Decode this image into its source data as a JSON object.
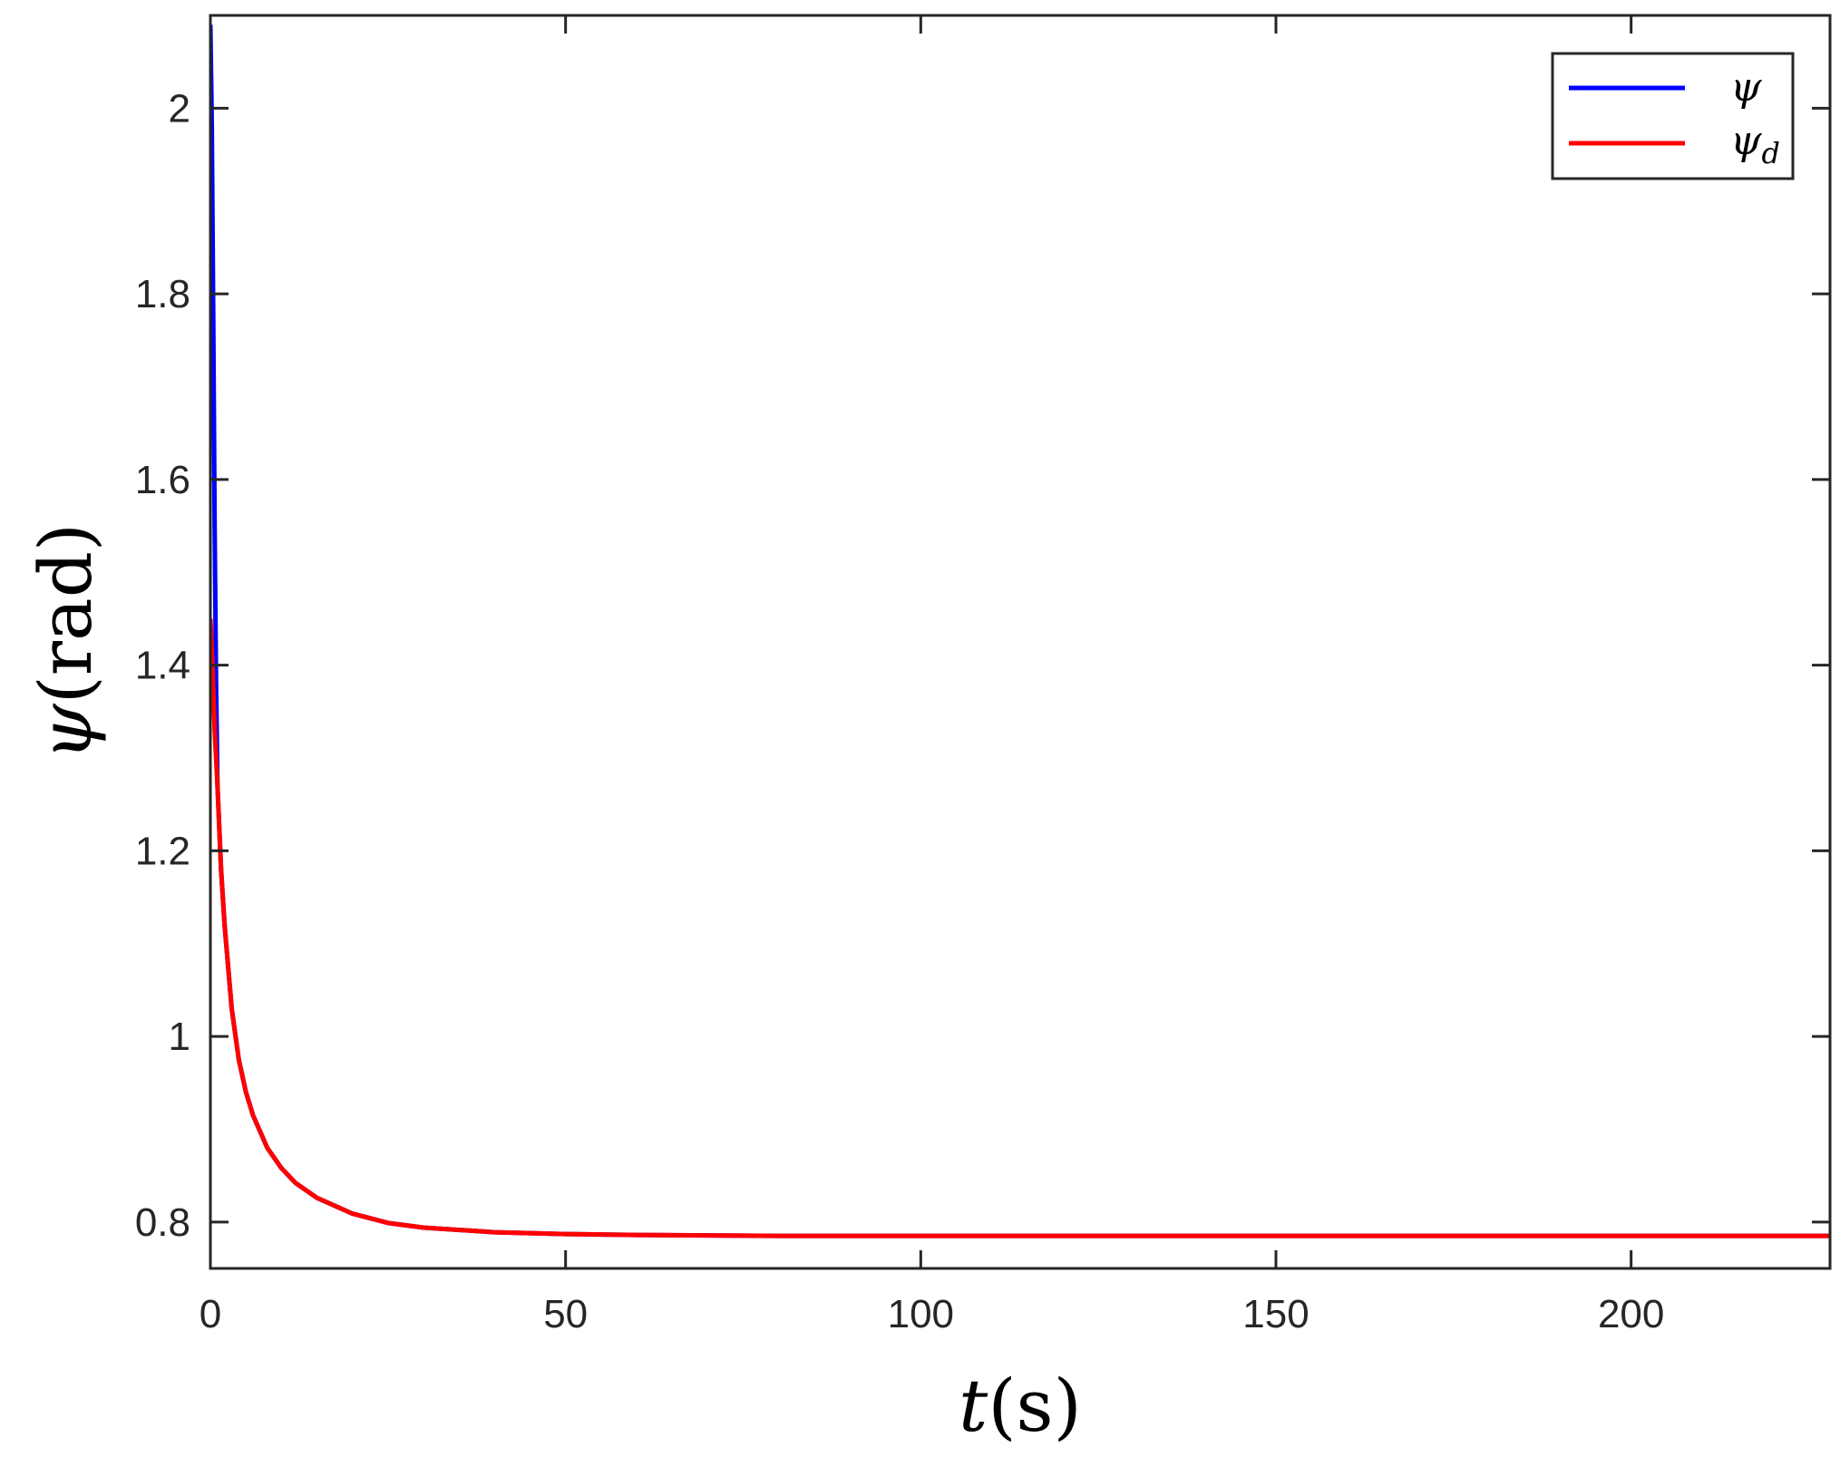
{
  "chart_data": {
    "type": "line",
    "title": "",
    "xlabel": {
      "var": "t",
      "unit": "(s)"
    },
    "ylabel": {
      "var": "ψ",
      "unit": "(rad)"
    },
    "xlim": [
      0,
      228
    ],
    "ylim": [
      0.75,
      2.1
    ],
    "xticks": [
      0,
      50,
      100,
      150,
      200
    ],
    "xtick_labels": [
      "0",
      "50",
      "100",
      "150",
      "200"
    ],
    "yticks": [
      0.8,
      1.0,
      1.2,
      1.4,
      1.6,
      1.8,
      2.0
    ],
    "ytick_labels": [
      "0.8",
      "1",
      "1.2",
      "1.4",
      "1.6",
      "1.8",
      "2"
    ],
    "grid": false,
    "legend_position": "top-right",
    "series": [
      {
        "name": "ψ",
        "color": "#0000ff",
        "x": [
          0,
          0.2,
          0.4,
          0.6,
          0.8,
          1.0,
          1.5,
          2,
          3,
          4,
          5,
          6,
          8,
          10,
          12,
          15,
          20,
          25,
          30,
          40,
          50,
          60,
          80,
          100,
          150,
          200,
          228
        ],
        "y": [
          2.09,
          1.98,
          1.78,
          1.55,
          1.38,
          1.27,
          1.18,
          1.12,
          1.03,
          0.975,
          0.94,
          0.915,
          0.88,
          0.858,
          0.842,
          0.826,
          0.809,
          0.799,
          0.794,
          0.789,
          0.787,
          0.786,
          0.785,
          0.785,
          0.785,
          0.785,
          0.785
        ]
      },
      {
        "name": "ψ",
        "subscript": "d",
        "color": "#ff0000",
        "x": [
          0,
          0.3,
          0.6,
          1.0,
          1.5,
          2,
          3,
          4,
          5,
          6,
          8,
          10,
          12,
          15,
          20,
          25,
          30,
          40,
          50,
          60,
          80,
          100,
          150,
          200,
          228
        ],
        "y": [
          1.45,
          1.4,
          1.33,
          1.27,
          1.18,
          1.12,
          1.03,
          0.975,
          0.94,
          0.915,
          0.88,
          0.858,
          0.842,
          0.826,
          0.809,
          0.799,
          0.794,
          0.789,
          0.787,
          0.786,
          0.785,
          0.785,
          0.785,
          0.785,
          0.785
        ]
      }
    ]
  }
}
